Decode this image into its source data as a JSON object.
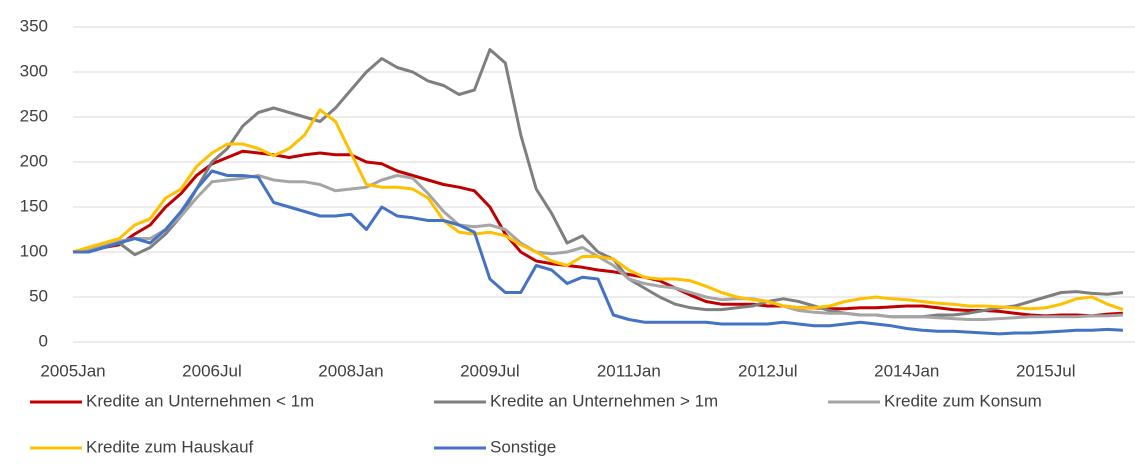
{
  "chart_data": {
    "type": "line",
    "categories": [
      "2005Jan",
      null,
      null,
      null,
      null,
      null,
      null,
      null,
      null,
      "2006Jul",
      null,
      null,
      null,
      null,
      null,
      null,
      null,
      null,
      "2008Jan",
      null,
      null,
      null,
      null,
      null,
      null,
      null,
      null,
      "2009Jul",
      null,
      null,
      null,
      null,
      null,
      null,
      null,
      null,
      "2011Jan",
      null,
      null,
      null,
      null,
      null,
      null,
      null,
      null,
      "2012Jul",
      null,
      null,
      null,
      null,
      null,
      null,
      null,
      null,
      "2014Jan",
      null,
      null,
      null,
      null,
      null,
      null,
      null,
      null,
      "2015Jul",
      null,
      null,
      null,
      null,
      null
    ],
    "ylim": [
      0,
      350
    ],
    "yticks": [
      0,
      50,
      100,
      150,
      200,
      250,
      300,
      350
    ],
    "grid": true,
    "legend": "bottom",
    "series": [
      {
        "name": "Kredite an Unternehmen < 1m",
        "color": "#c00000",
        "values": [
          100,
          103,
          105,
          108,
          120,
          130,
          150,
          165,
          185,
          198,
          205,
          212,
          210,
          208,
          205,
          208,
          210,
          208,
          208,
          200,
          198,
          190,
          185,
          180,
          175,
          172,
          168,
          150,
          120,
          100,
          90,
          87,
          85,
          83,
          80,
          78,
          75,
          72,
          68,
          60,
          52,
          45,
          42,
          42,
          42,
          40,
          40,
          38,
          38,
          37,
          37,
          38,
          38,
          39,
          40,
          40,
          38,
          36,
          35,
          35,
          34,
          32,
          30,
          29,
          30,
          30,
          29,
          31,
          32
        ]
      },
      {
        "name": "Kredite an Unternehmen > 1m",
        "color": "#7f7f7f",
        "values": [
          100,
          100,
          105,
          110,
          97,
          105,
          120,
          140,
          170,
          200,
          215,
          240,
          255,
          260,
          255,
          250,
          245,
          260,
          280,
          300,
          315,
          305,
          300,
          290,
          285,
          275,
          280,
          325,
          310,
          230,
          170,
          143,
          110,
          118,
          100,
          92,
          70,
          60,
          50,
          42,
          38,
          36,
          36,
          38,
          40,
          45,
          48,
          45,
          40,
          35,
          32,
          30,
          30,
          28,
          28,
          28,
          30,
          30,
          32,
          35,
          38,
          40,
          45,
          50,
          55,
          56,
          54,
          53,
          55
        ]
      },
      {
        "name": "Kredite zum Konsum",
        "color": "#a5a5a5",
        "values": [
          100,
          102,
          108,
          112,
          115,
          115,
          125,
          140,
          160,
          178,
          180,
          182,
          185,
          180,
          178,
          178,
          175,
          168,
          170,
          172,
          180,
          185,
          182,
          165,
          145,
          130,
          128,
          130,
          125,
          110,
          100,
          98,
          100,
          105,
          95,
          85,
          70,
          65,
          62,
          60,
          55,
          50,
          47,
          48,
          48,
          45,
          40,
          35,
          33,
          32,
          32,
          30,
          30,
          28,
          28,
          28,
          27,
          26,
          25,
          25,
          26,
          27,
          28,
          28,
          28,
          28,
          29,
          29,
          30
        ]
      },
      {
        "name": "Kredite zum Hauskauf",
        "color": "#ffc000",
        "values": [
          100,
          105,
          110,
          115,
          130,
          137,
          160,
          170,
          195,
          210,
          220,
          220,
          215,
          207,
          215,
          230,
          258,
          245,
          210,
          175,
          172,
          172,
          170,
          160,
          135,
          122,
          120,
          122,
          118,
          108,
          100,
          90,
          85,
          95,
          95,
          92,
          80,
          72,
          70,
          70,
          68,
          62,
          55,
          50,
          47,
          45,
          40,
          38,
          38,
          40,
          45,
          48,
          50,
          48,
          47,
          45,
          43,
          42,
          40,
          40,
          39,
          38,
          37,
          38,
          42,
          48,
          50,
          42,
          36
        ]
      },
      {
        "name": "Sonstige",
        "color": "#4472c4",
        "values": [
          100,
          100,
          105,
          110,
          115,
          110,
          125,
          145,
          170,
          190,
          185,
          185,
          183,
          155,
          150,
          145,
          140,
          140,
          142,
          125,
          150,
          140,
          138,
          135,
          135,
          130,
          122,
          70,
          55,
          55,
          85,
          80,
          65,
          72,
          70,
          30,
          25,
          22,
          22,
          22,
          22,
          22,
          20,
          20,
          20,
          20,
          22,
          20,
          18,
          18,
          20,
          22,
          20,
          18,
          15,
          13,
          12,
          12,
          11,
          10,
          9,
          10,
          10,
          11,
          12,
          13,
          13,
          14,
          13
        ]
      }
    ]
  }
}
